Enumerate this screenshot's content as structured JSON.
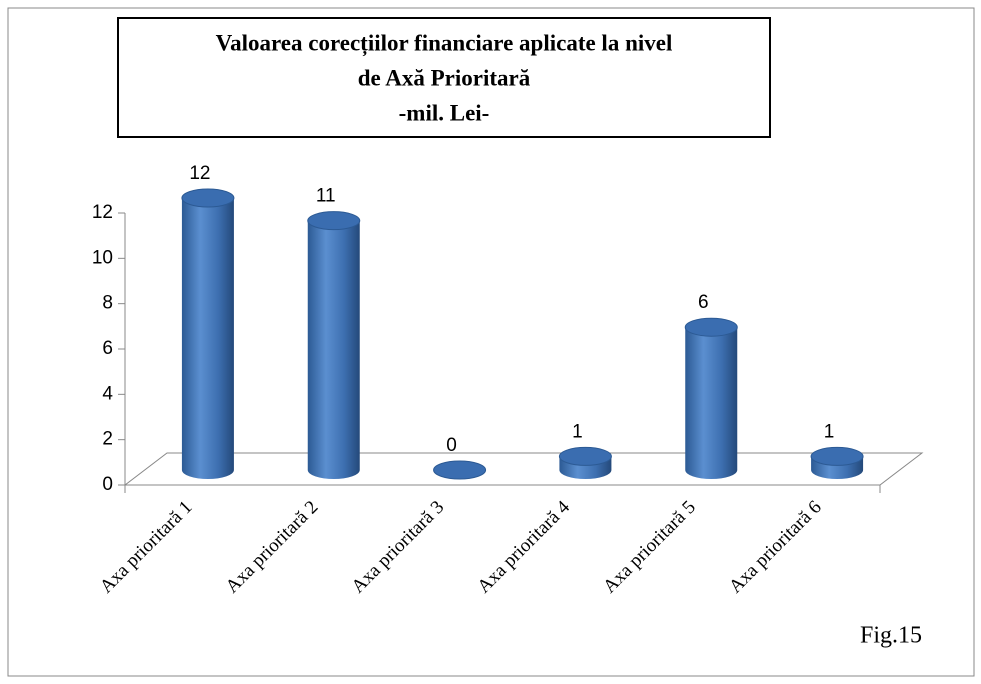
{
  "chart_data": {
    "type": "bar",
    "title": [
      "Valoarea corecțiilor financiare aplicate la nivel",
      "de Axă Prioritară",
      "-mil. Lei-"
    ],
    "categories": [
      "Axa prioritară 1",
      "Axa prioritară 2",
      "Axa prioritară 3",
      "Axa prioritară 4",
      "Axa prioritară 5",
      "Axa prioritară 6"
    ],
    "values": [
      12,
      11,
      0,
      0.6,
      6.3,
      0.6
    ],
    "value_labels": [
      "12",
      "11",
      "0",
      "1",
      "6",
      "1"
    ],
    "color": "#4f81bd",
    "ylim": [
      0,
      12
    ],
    "yticks": [
      0,
      2,
      4,
      6,
      8,
      10,
      12
    ],
    "annotation": "Fig.15"
  }
}
